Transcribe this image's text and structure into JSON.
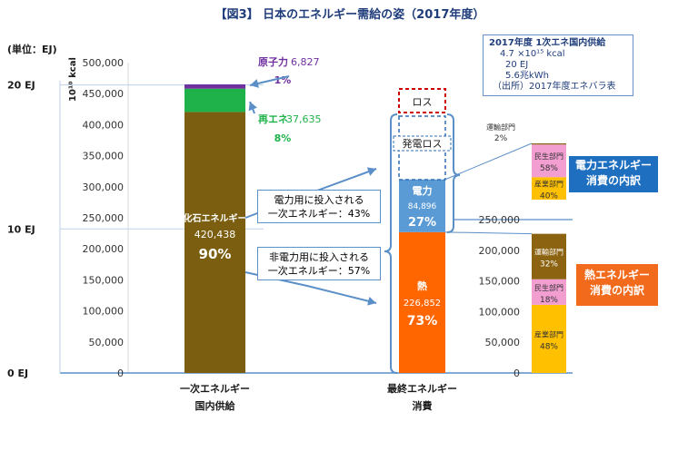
{
  "title": "【図3】 日本のエネルギー需給の姿（2017年度）",
  "unit_label": "(単位：EJ)",
  "kcal_label": "10¹⁰ kcal",
  "info": {
    "line1": "2017年度  1次エネ国内供給",
    "line2": "4.7 ×10¹⁵ kcal",
    "line3": "20 EJ",
    "line4": "5.6兆kWh",
    "line5": "（出所）2017年度エネバラ表"
  },
  "callouts": {
    "power": [
      "電力用に投入される",
      "一次エネルギー：43%"
    ],
    "nonpower": [
      "非電力用に投入される",
      "一次エネルギー：57%"
    ]
  },
  "tags": {
    "elec": [
      "電力エネルギー",
      "消費の内訳"
    ],
    "heat": [
      "熱エネルギー",
      "消費の内訳"
    ]
  },
  "colors": {
    "fossil": "#7b5e10",
    "renew": "#1fb24a",
    "nuclear": "#7030a0",
    "power": "#5b9bd5",
    "heat": "#ff6600",
    "transport": "#8c6310",
    "residential": "#f29ed1",
    "industry": "#ffc000",
    "tag_blue": "#1f6fc0",
    "tag_orange": "#f26b1d",
    "loss": "#cc0000",
    "dash_blue": "#2e6eb5"
  },
  "chart_data": [
    {
      "type": "bar",
      "subtype": "stacked",
      "category": "一次エネルギー国内供給",
      "category_lines": [
        "一次エネルギー",
        "国内供給"
      ],
      "ylim": [
        0,
        500000
      ],
      "yticks": [
        "0",
        "50,000",
        "100,000",
        "150,000",
        "200,000",
        "250,000",
        "300,000",
        "350,000",
        "400,000",
        "450,000",
        "500,000"
      ],
      "ej_ticks": [
        {
          "label": "0 EJ",
          "value": 0
        },
        {
          "label": "10 EJ",
          "value": 232000
        },
        {
          "label": "20 EJ",
          "value": 464000
        }
      ],
      "segments": [
        {
          "name": "化石エネルギー",
          "value": 420438,
          "value_label": "420,438",
          "pct": "90%"
        },
        {
          "name": "再エネ",
          "value": 37635,
          "value_label": "37,635",
          "pct": "8%"
        },
        {
          "name": "原子力",
          "value": 6827,
          "value_label": "6,827",
          "pct": "1%"
        }
      ]
    },
    {
      "type": "bar",
      "subtype": "stacked",
      "category": "最終エネルギー消費",
      "category_lines": [
        "最終エネルギー",
        "消費"
      ],
      "segments": [
        {
          "name": "熱",
          "value": 226852,
          "value_label": "226,852",
          "pct": "73%"
        },
        {
          "name": "電力",
          "value": 84896,
          "value_label": "84,896",
          "pct": "27%"
        },
        {
          "name": "発電ロス",
          "outline": "dashed"
        },
        {
          "name": "ロス",
          "outline": "dashed"
        }
      ]
    },
    {
      "type": "bar",
      "subtype": "stacked-percent",
      "title": "電力エネルギー消費の内訳",
      "segments": [
        {
          "name": "産業部門",
          "pct": 40,
          "pct_label": "40%"
        },
        {
          "name": "民生部門",
          "pct": 58,
          "pct_label": "58%"
        },
        {
          "name": "運輸部門",
          "pct": 2,
          "pct_label": "2%"
        }
      ]
    },
    {
      "type": "bar",
      "subtype": "stacked-percent",
      "title": "熱エネルギー消費の内訳",
      "yticks": [
        "0",
        "50,000",
        "100,000",
        "150,000",
        "200,000",
        "250,000"
      ],
      "segments": [
        {
          "name": "産業部門",
          "pct": 48,
          "pct_label": "48%"
        },
        {
          "name": "民生部門",
          "pct": 18,
          "pct_label": "18%"
        },
        {
          "name": "運輸部門",
          "pct": 32,
          "pct_label": "32%"
        }
      ]
    }
  ]
}
